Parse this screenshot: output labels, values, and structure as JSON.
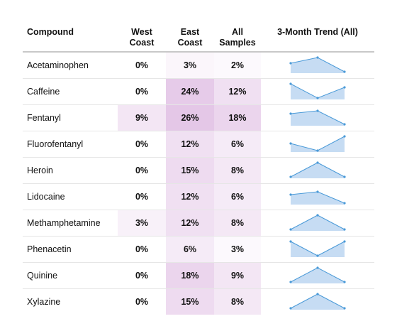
{
  "chart_data": {
    "type": "table",
    "columns": [
      "Compound",
      "West Coast",
      "East Coast",
      "All Samples",
      "3-Month Trend (All)"
    ],
    "header": {
      "compound": "Compound",
      "west": [
        "West",
        "Coast"
      ],
      "east": [
        "East",
        "Coast"
      ],
      "all": [
        "All",
        "Samples"
      ],
      "trend": "3-Month Trend (All)"
    },
    "rows": [
      {
        "compound": "Acetaminophen",
        "west": 0,
        "east": 3,
        "all": 2,
        "west_label": "0%",
        "east_label": "3%",
        "all_label": "2%",
        "trend": [
          0.6,
          1.0,
          0.0
        ]
      },
      {
        "compound": "Caffeine",
        "west": 0,
        "east": 24,
        "all": 12,
        "west_label": "0%",
        "east_label": "24%",
        "all_label": "12%",
        "trend": [
          1.0,
          0.0,
          0.75
        ]
      },
      {
        "compound": "Fentanyl",
        "west": 9,
        "east": 26,
        "all": 18,
        "west_label": "9%",
        "east_label": "26%",
        "all_label": "18%",
        "trend": [
          0.75,
          0.95,
          0.0
        ]
      },
      {
        "compound": "Fluorofentanyl",
        "west": 0,
        "east": 12,
        "all": 6,
        "west_label": "0%",
        "east_label": "12%",
        "all_label": "6%",
        "trend": [
          0.5,
          0.0,
          1.0
        ]
      },
      {
        "compound": "Heroin",
        "west": 0,
        "east": 15,
        "all": 8,
        "west_label": "0%",
        "east_label": "15%",
        "all_label": "8%",
        "trend": [
          0.0,
          1.0,
          0.0
        ]
      },
      {
        "compound": "Lidocaine",
        "west": 0,
        "east": 12,
        "all": 6,
        "west_label": "0%",
        "east_label": "12%",
        "all_label": "6%",
        "trend": [
          0.6,
          0.8,
          0.0
        ]
      },
      {
        "compound": "Methamphetamine",
        "west": 3,
        "east": 12,
        "all": 8,
        "west_label": "3%",
        "east_label": "12%",
        "all_label": "8%",
        "trend": [
          0.0,
          1.0,
          0.0
        ]
      },
      {
        "compound": "Phenacetin",
        "west": 0,
        "east": 6,
        "all": 3,
        "west_label": "0%",
        "east_label": "6%",
        "all_label": "3%",
        "trend": [
          1.0,
          0.0,
          1.0
        ]
      },
      {
        "compound": "Quinine",
        "west": 0,
        "east": 18,
        "all": 9,
        "west_label": "0%",
        "east_label": "18%",
        "all_label": "9%",
        "trend": [
          0.0,
          1.0,
          0.0
        ]
      },
      {
        "compound": "Xylazine",
        "west": 0,
        "east": 15,
        "all": 8,
        "west_label": "0%",
        "east_label": "15%",
        "all_label": "8%",
        "trend": [
          0.0,
          1.0,
          0.0
        ]
      }
    ],
    "colors": {
      "heat_base": "#c98fcf",
      "spark_fill": "#c6dcf3",
      "spark_line": "#4a9ad8",
      "header_rule": "#c8c8c8",
      "row_rule": "#e6e6e6"
    },
    "heat_max": 26
  }
}
